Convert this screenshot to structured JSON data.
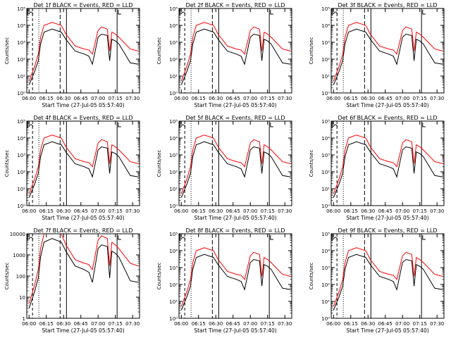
{
  "chart_data": [
    {
      "type": "line",
      "title": "Det 1f BLACK = Events, RED = LLD",
      "xlabel": "Start Time (27-Jul-05 05:57:40)",
      "ylabel": "Counts/sec",
      "log_y": true,
      "y_tick_labels": [
        "10⁰",
        "10¹",
        "10²",
        "10³",
        "10⁴",
        "10⁵"
      ],
      "x_tick_labels": [
        "06:00",
        "06:15",
        "06:30",
        "06:45",
        "07:00",
        "07:15",
        "07:30"
      ],
      "ylim": [
        1,
        100000
      ],
      "series": [
        {
          "color": "#000000",
          "x": [
            0,
            5,
            8,
            10,
            13,
            20,
            28,
            32,
            40,
            48,
            52,
            55,
            60,
            63,
            68,
            70,
            72,
            75,
            78,
            88,
            95
          ],
          "y": [
            3,
            20,
            80,
            800,
            4000,
            6000,
            4000,
            1500,
            300,
            200,
            150,
            50,
            2000,
            3000,
            2500,
            80,
            1500,
            1200,
            800,
            60,
            50
          ]
        },
        {
          "color": "#ff0000",
          "x": [
            0,
            5,
            8,
            10,
            13,
            20,
            28,
            32,
            40,
            48,
            52,
            55,
            60,
            63,
            68,
            70,
            72,
            75,
            78,
            88,
            95
          ],
          "y": [
            5,
            40,
            200,
            2000,
            10000,
            15000,
            10000,
            3000,
            600,
            400,
            350,
            200,
            5000,
            8000,
            6000,
            300,
            4000,
            3000,
            2000,
            400,
            300
          ]
        }
      ]
    },
    {
      "type": "line",
      "title": "Det 2f BLACK = Events, RED = LLD",
      "xlabel": "Start Time (27-Jul-05 05:57:40)",
      "ylabel": "Counts/sec",
      "log_y": true,
      "y_tick_labels": [
        "10⁰",
        "10¹",
        "10²",
        "10³",
        "10⁴",
        "10⁵"
      ],
      "x_tick_labels": [
        "06:00",
        "06:15",
        "06:30",
        "06:45",
        "07:00",
        "07:15",
        "07:30"
      ],
      "ylim": [
        1,
        100000
      ],
      "series": [
        {
          "color": "#000000",
          "x": [
            0,
            5,
            8,
            10,
            13,
            20,
            28,
            32,
            40,
            48,
            52,
            55,
            60,
            63,
            68,
            70,
            72,
            75,
            78,
            88,
            95
          ],
          "y": [
            3,
            20,
            80,
            800,
            4000,
            6000,
            4000,
            1500,
            300,
            200,
            150,
            50,
            2000,
            3000,
            2500,
            80,
            1500,
            1200,
            800,
            60,
            50
          ]
        },
        {
          "color": "#ff0000",
          "x": [
            0,
            5,
            8,
            10,
            13,
            20,
            28,
            32,
            40,
            48,
            52,
            55,
            60,
            63,
            68,
            70,
            72,
            75,
            78,
            88,
            95
          ],
          "y": [
            5,
            40,
            200,
            2000,
            10000,
            15000,
            10000,
            3000,
            600,
            400,
            350,
            200,
            5000,
            8000,
            6000,
            300,
            4000,
            3000,
            2000,
            400,
            300
          ]
        }
      ]
    },
    {
      "type": "line",
      "title": "Det 3f BLACK = Events, RED = LLD",
      "xlabel": "Start Time (27-Jul-05 05:57:40)",
      "ylabel": "Counts/sec",
      "log_y": true,
      "y_tick_labels": [
        "10⁰",
        "10¹",
        "10²",
        "10³",
        "10⁴",
        "10⁵"
      ],
      "x_tick_labels": [
        "06:00",
        "06:15",
        "06:30",
        "06:45",
        "07:00",
        "07:15",
        "07:30"
      ],
      "ylim": [
        1,
        100000
      ],
      "series": [
        {
          "color": "#000000",
          "x": [
            0,
            5,
            8,
            10,
            13,
            20,
            28,
            32,
            40,
            48,
            52,
            55,
            60,
            63,
            68,
            70,
            72,
            75,
            78,
            88,
            95
          ],
          "y": [
            3,
            20,
            80,
            800,
            4000,
            6000,
            4000,
            1500,
            300,
            200,
            150,
            50,
            2000,
            3000,
            2500,
            80,
            1500,
            1200,
            800,
            60,
            50
          ]
        },
        {
          "color": "#ff0000",
          "x": [
            0,
            5,
            8,
            10,
            13,
            20,
            28,
            32,
            40,
            48,
            52,
            55,
            60,
            63,
            68,
            70,
            72,
            75,
            78,
            88,
            95
          ],
          "y": [
            5,
            40,
            200,
            2000,
            10000,
            15000,
            10000,
            3000,
            600,
            400,
            350,
            200,
            5000,
            8000,
            6000,
            300,
            4000,
            3000,
            2000,
            400,
            300
          ]
        }
      ]
    },
    {
      "type": "line",
      "title": "Det 4f BLACK = Events, RED = LLD",
      "xlabel": "Start Time (27-Jul-05 05:57:40)",
      "ylabel": "Counts/sec",
      "log_y": true,
      "y_tick_labels": [
        "10⁰",
        "10¹",
        "10²",
        "10³",
        "10⁴",
        "10⁵"
      ],
      "x_tick_labels": [
        "06:00",
        "06:15",
        "06:30",
        "06:45",
        "07:00",
        "07:15",
        "07:30"
      ],
      "ylim": [
        1,
        100000
      ],
      "series": [
        {
          "color": "#000000",
          "x": [
            0,
            5,
            8,
            10,
            13,
            20,
            28,
            32,
            40,
            48,
            52,
            55,
            60,
            63,
            68,
            70,
            72,
            75,
            78,
            88,
            95
          ],
          "y": [
            3,
            20,
            80,
            800,
            4000,
            6000,
            4000,
            1500,
            300,
            200,
            150,
            50,
            2000,
            3000,
            2500,
            80,
            1500,
            1200,
            800,
            60,
            50
          ]
        },
        {
          "color": "#ff0000",
          "x": [
            0,
            5,
            8,
            10,
            13,
            20,
            28,
            32,
            40,
            48,
            52,
            55,
            60,
            63,
            68,
            70,
            72,
            75,
            78,
            88,
            95
          ],
          "y": [
            5,
            40,
            200,
            2000,
            10000,
            15000,
            10000,
            3000,
            600,
            400,
            350,
            200,
            5000,
            8000,
            6000,
            300,
            4000,
            3000,
            2000,
            400,
            300
          ]
        }
      ]
    },
    {
      "type": "line",
      "title": "Det 5f BLACK = Events, RED = LLD",
      "xlabel": "Start Time (27-Jul-05 05:57:40)",
      "ylabel": "Counts/sec",
      "log_y": true,
      "y_tick_labels": [
        "10⁰",
        "10¹",
        "10²",
        "10³",
        "10⁴",
        "10⁵"
      ],
      "x_tick_labels": [
        "06:00",
        "06:15",
        "06:30",
        "06:45",
        "07:00",
        "07:15",
        "07:30"
      ],
      "ylim": [
        1,
        100000
      ],
      "series": [
        {
          "color": "#000000",
          "x": [
            0,
            5,
            8,
            10,
            13,
            20,
            28,
            32,
            40,
            48,
            52,
            55,
            60,
            63,
            68,
            70,
            72,
            75,
            78,
            88,
            95
          ],
          "y": [
            3,
            20,
            80,
            800,
            4000,
            6000,
            4000,
            1500,
            300,
            200,
            150,
            50,
            2000,
            3000,
            2500,
            80,
            1500,
            1200,
            800,
            60,
            50
          ]
        },
        {
          "color": "#ff0000",
          "x": [
            0,
            5,
            8,
            10,
            13,
            20,
            28,
            32,
            40,
            48,
            52,
            55,
            60,
            63,
            68,
            70,
            72,
            75,
            78,
            88,
            95
          ],
          "y": [
            5,
            40,
            200,
            2000,
            10000,
            15000,
            10000,
            3000,
            600,
            400,
            350,
            200,
            5000,
            8000,
            6000,
            300,
            4000,
            3000,
            2000,
            400,
            300
          ]
        }
      ]
    },
    {
      "type": "line",
      "title": "Det 6f BLACK = Events, RED = LLD",
      "xlabel": "Start Time (27-Jul-05 05:57:40)",
      "ylabel": "Counts/sec",
      "log_y": true,
      "y_tick_labels": [
        "10⁰",
        "10¹",
        "10²",
        "10³",
        "10⁴",
        "10⁵"
      ],
      "x_tick_labels": [
        "06:00",
        "06:15",
        "06:30",
        "06:45",
        "07:00",
        "07:15",
        "07:30"
      ],
      "ylim": [
        1,
        100000
      ],
      "series": [
        {
          "color": "#000000",
          "x": [
            0,
            5,
            8,
            10,
            13,
            20,
            28,
            32,
            40,
            48,
            52,
            55,
            60,
            63,
            68,
            70,
            72,
            75,
            78,
            88,
            95
          ],
          "y": [
            3,
            20,
            80,
            800,
            4000,
            6000,
            4000,
            1500,
            300,
            200,
            150,
            50,
            2000,
            3000,
            2500,
            80,
            1500,
            1200,
            800,
            60,
            50
          ]
        },
        {
          "color": "#ff0000",
          "x": [
            0,
            5,
            8,
            10,
            13,
            20,
            28,
            32,
            40,
            48,
            52,
            55,
            60,
            63,
            68,
            70,
            72,
            75,
            78,
            88,
            95
          ],
          "y": [
            5,
            40,
            200,
            2000,
            10000,
            15000,
            10000,
            3000,
            600,
            400,
            350,
            200,
            5000,
            8000,
            6000,
            300,
            4000,
            3000,
            2000,
            400,
            300
          ]
        }
      ]
    },
    {
      "type": "line",
      "title": "Det 7f BLACK = Events, RED = LLD",
      "xlabel": "Start Time (27-Jul-05 05:57:40)",
      "ylabel": "Counts/sec",
      "log_y": true,
      "y_tick_labels": [
        "1",
        "10",
        "100",
        "1000",
        "10000"
      ],
      "x_tick_labels": [
        "06:00",
        "06:15",
        "06:30",
        "06:45",
        "07:00",
        "07:15",
        "07:30"
      ],
      "ylim": [
        1,
        10000
      ],
      "series": [
        {
          "color": "#000000",
          "x": [
            0,
            5,
            8,
            10,
            13,
            20,
            28,
            32,
            40,
            48,
            52,
            55,
            60,
            63,
            68,
            70,
            72,
            75,
            78,
            88,
            95
          ],
          "y": [
            3,
            20,
            80,
            800,
            4000,
            6000,
            4000,
            1500,
            300,
            200,
            150,
            50,
            2000,
            3000,
            2500,
            80,
            1500,
            1200,
            800,
            60,
            50
          ]
        },
        {
          "color": "#ff0000",
          "x": [
            0,
            5,
            8,
            10,
            13,
            20,
            28,
            32,
            40,
            48,
            52,
            55,
            60,
            63,
            68,
            70,
            72,
            75,
            78,
            88,
            95
          ],
          "y": [
            5,
            40,
            200,
            2000,
            10000,
            15000,
            10000,
            3000,
            600,
            400,
            350,
            200,
            5000,
            8000,
            6000,
            300,
            4000,
            3000,
            2000,
            400,
            300
          ]
        }
      ]
    },
    {
      "type": "line",
      "title": "Det 8f BLACK = Events, RED = LLD",
      "xlabel": "Start Time (27-Jul-05 05:57:40)",
      "ylabel": "Counts/sec",
      "log_y": true,
      "y_tick_labels": [
        "10⁰",
        "10¹",
        "10²",
        "10³",
        "10⁴",
        "10⁵"
      ],
      "x_tick_labels": [
        "06:00",
        "06:15",
        "06:30",
        "06:45",
        "07:00",
        "07:15",
        "07:30"
      ],
      "ylim": [
        1,
        100000
      ],
      "series": [
        {
          "color": "#000000",
          "x": [
            0,
            5,
            8,
            10,
            13,
            20,
            28,
            32,
            40,
            48,
            52,
            55,
            60,
            63,
            68,
            70,
            72,
            75,
            78,
            88,
            95
          ],
          "y": [
            3,
            20,
            80,
            800,
            4000,
            6000,
            4000,
            1500,
            300,
            200,
            150,
            50,
            2000,
            3000,
            2500,
            80,
            1500,
            1200,
            800,
            60,
            50
          ]
        },
        {
          "color": "#ff0000",
          "x": [
            0,
            5,
            8,
            10,
            13,
            20,
            28,
            32,
            40,
            48,
            52,
            55,
            60,
            63,
            68,
            70,
            72,
            75,
            78,
            88,
            95
          ],
          "y": [
            5,
            40,
            200,
            2000,
            10000,
            15000,
            10000,
            3000,
            600,
            400,
            350,
            200,
            5000,
            8000,
            6000,
            300,
            4000,
            3000,
            2000,
            400,
            300
          ]
        }
      ]
    },
    {
      "type": "line",
      "title": "Det 9f BLACK = Events, RED = LLD",
      "xlabel": "Start Time (27-Jul-05 05:57:40)",
      "ylabel": "Counts/sec",
      "log_y": true,
      "y_tick_labels": [
        "10⁰",
        "10¹",
        "10²",
        "10³",
        "10⁴",
        "10⁵"
      ],
      "x_tick_labels": [
        "06:00",
        "06:15",
        "06:30",
        "06:45",
        "07:00",
        "07:15",
        "07:30"
      ],
      "ylim": [
        1,
        100000
      ],
      "series": [
        {
          "color": "#000000",
          "x": [
            0,
            5,
            8,
            10,
            13,
            20,
            28,
            32,
            40,
            48,
            52,
            55,
            60,
            63,
            68,
            70,
            72,
            75,
            78,
            88,
            95
          ],
          "y": [
            3,
            20,
            80,
            800,
            4000,
            6000,
            4000,
            1500,
            300,
            200,
            150,
            50,
            2000,
            3000,
            2500,
            80,
            1500,
            1200,
            800,
            60,
            50
          ]
        },
        {
          "color": "#ff0000",
          "x": [
            0,
            5,
            8,
            10,
            13,
            20,
            28,
            32,
            40,
            48,
            52,
            55,
            60,
            63,
            68,
            70,
            72,
            75,
            78,
            88,
            95
          ],
          "y": [
            5,
            40,
            200,
            2000,
            10000,
            15000,
            10000,
            3000,
            600,
            400,
            350,
            200,
            5000,
            8000,
            6000,
            300,
            4000,
            3000,
            2000,
            400,
            300
          ]
        }
      ]
    }
  ]
}
